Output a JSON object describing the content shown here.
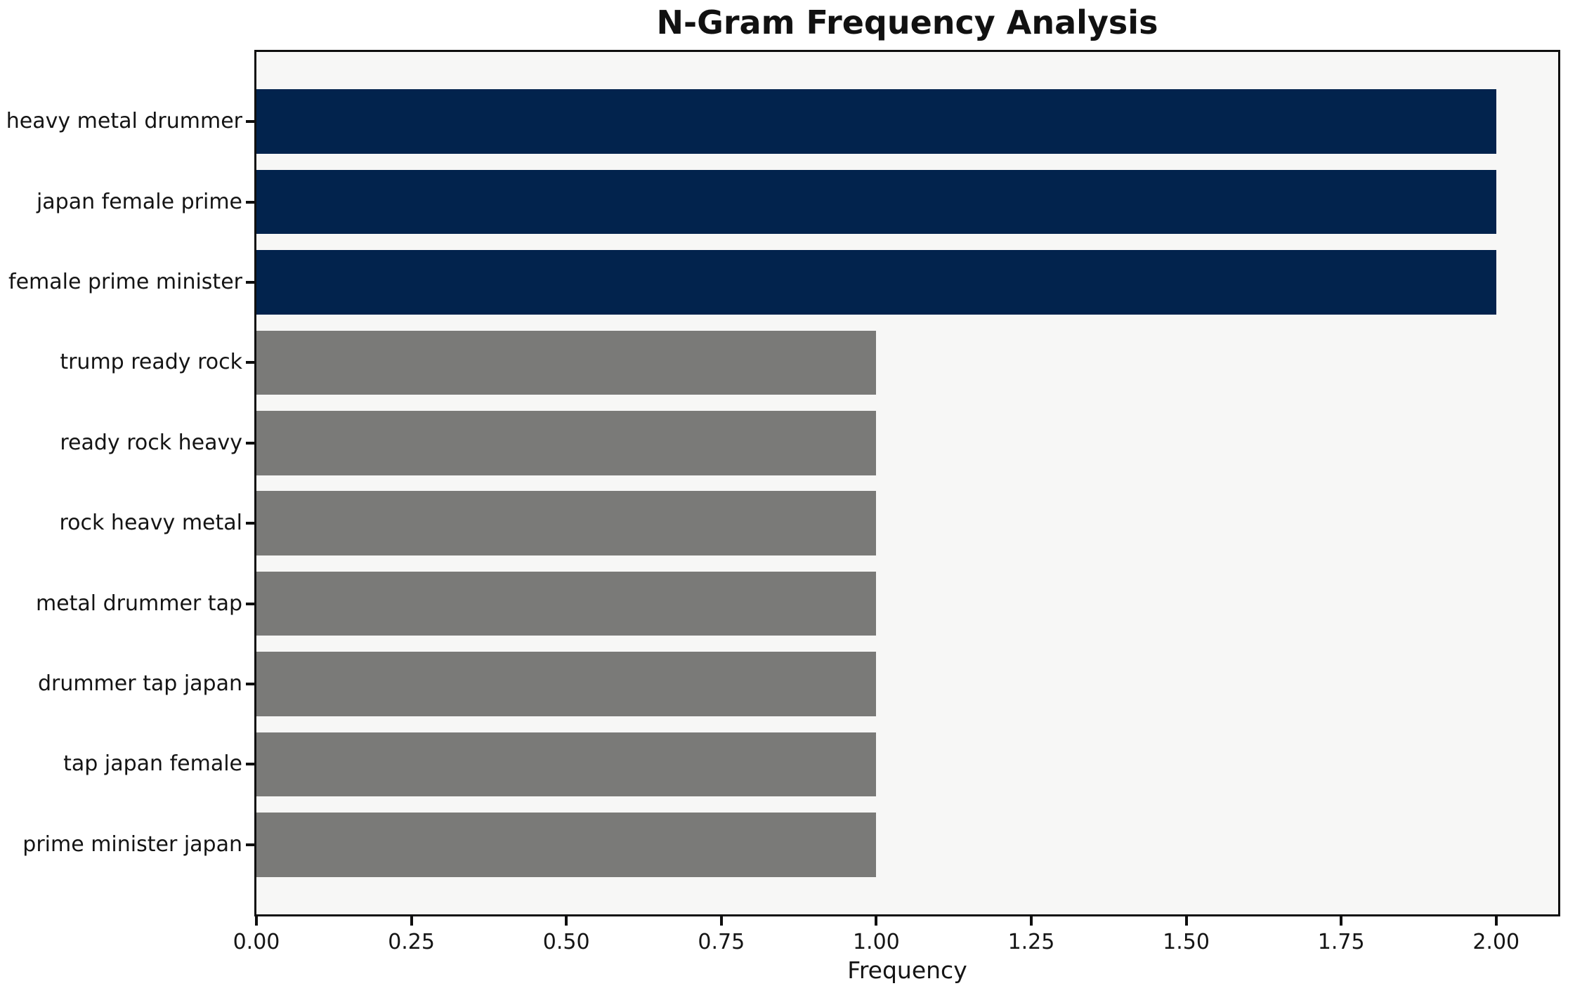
{
  "colors": {
    "figure_background": "#ffffff",
    "plot_background": "#f7f7f6",
    "spine": "#0f0f0f",
    "text": "#141414",
    "bar_high": "#02234d",
    "bar_low": "#7a7a78"
  },
  "chart_data": {
    "type": "bar",
    "orientation": "horizontal",
    "title": "N-Gram Frequency Analysis",
    "xlabel": "Frequency",
    "ylabel": "",
    "categories": [
      "heavy metal drummer",
      "japan female prime",
      "female prime minister",
      "trump ready rock",
      "ready rock heavy",
      "rock heavy metal",
      "metal drummer tap",
      "drummer tap japan",
      "tap japan female",
      "prime minister japan"
    ],
    "values": [
      2,
      2,
      2,
      1,
      1,
      1,
      1,
      1,
      1,
      1
    ],
    "bar_colors": [
      "#02234d",
      "#02234d",
      "#02234d",
      "#7a7a78",
      "#7a7a78",
      "#7a7a78",
      "#7a7a78",
      "#7a7a78",
      "#7a7a78",
      "#7a7a78"
    ],
    "xlim": [
      0,
      2.1
    ],
    "xtick_values": [
      0,
      0.25,
      0.5,
      0.75,
      1.0,
      1.25,
      1.5,
      1.75,
      2.0
    ],
    "xtick_labels": [
      "0.00",
      "0.25",
      "0.50",
      "0.75",
      "1.00",
      "1.25",
      "1.50",
      "1.75",
      "2.00"
    ],
    "grid": false,
    "legend": "none"
  }
}
